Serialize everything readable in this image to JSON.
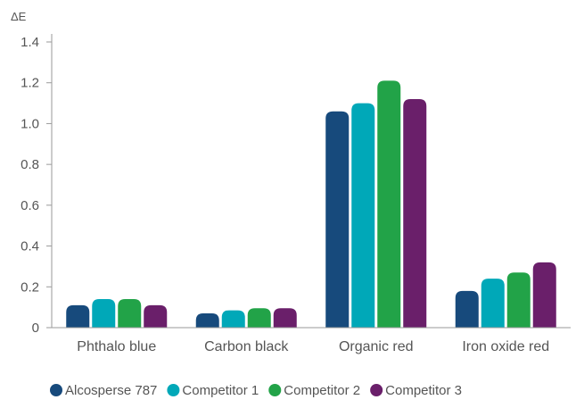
{
  "chart_data": {
    "type": "bar",
    "title": "",
    "xlabel": "",
    "ylabel": "ΔE",
    "ylim": [
      0,
      1.4
    ],
    "yticks": [
      {
        "value": 0,
        "label": "0"
      },
      {
        "value": 0.2,
        "label": "0.2"
      },
      {
        "value": 0.4,
        "label": "0.4"
      },
      {
        "value": 0.6,
        "label": "0.6"
      },
      {
        "value": 0.8,
        "label": "0.8"
      },
      {
        "value": 1.0,
        "label": "1.0"
      },
      {
        "value": 1.2,
        "label": "1.2"
      },
      {
        "value": 1.4,
        "label": "1.4"
      }
    ],
    "grid": false,
    "legend_position": "bottom",
    "categories": [
      "Phthalo blue",
      "Carbon black",
      "Organic red",
      "Iron oxide red"
    ],
    "series": [
      {
        "name": "Alcosperse 787",
        "color": "#174a7c",
        "values": [
          0.11,
          0.07,
          1.06,
          0.18
        ]
      },
      {
        "name": "Competitor 1",
        "color": "#00a8b8",
        "values": [
          0.14,
          0.085,
          1.1,
          0.24
        ]
      },
      {
        "name": "Competitor 2",
        "color": "#22a348",
        "values": [
          0.14,
          0.095,
          1.21,
          0.27
        ]
      },
      {
        "name": "Competitor 3",
        "color": "#6a1f6a",
        "values": [
          0.11,
          0.095,
          1.12,
          0.32
        ]
      }
    ]
  }
}
